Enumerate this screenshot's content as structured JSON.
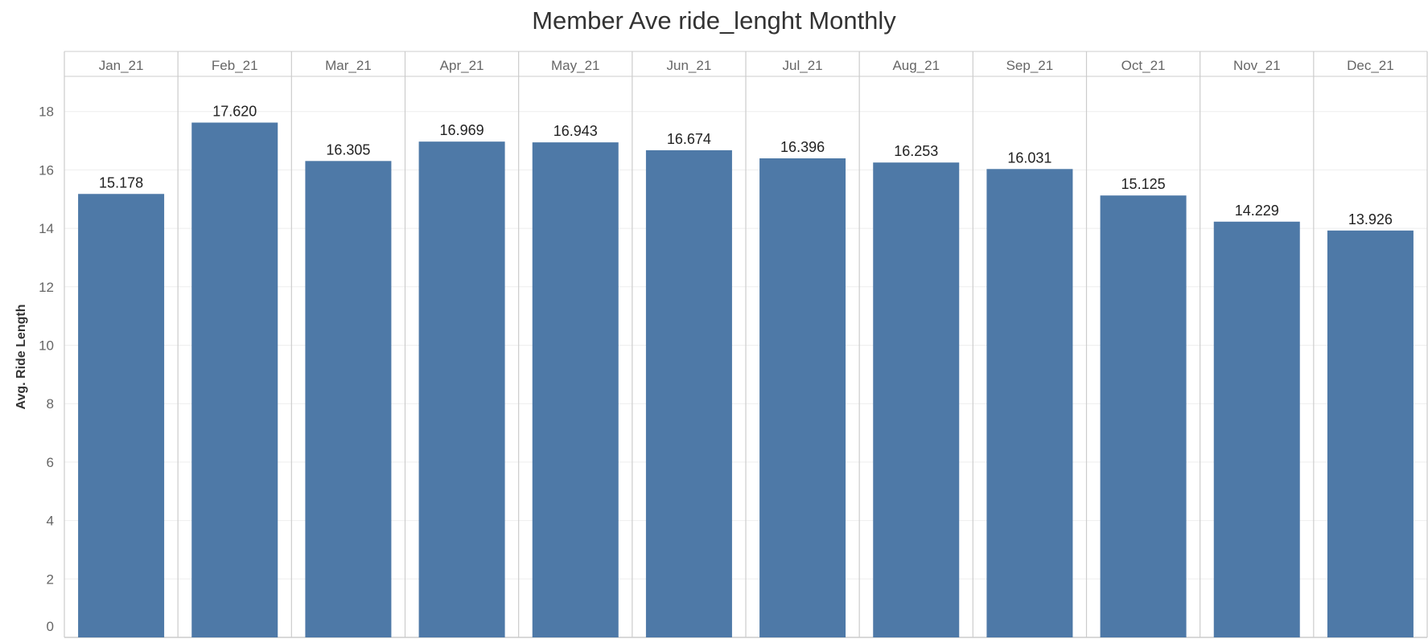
{
  "chart_data": {
    "type": "bar",
    "title": "Member Ave ride_lenght Monthly",
    "xlabel": "",
    "ylabel": "Avg. Ride Length",
    "categories": [
      "Jan_21",
      "Feb_21",
      "Mar_21",
      "Apr_21",
      "May_21",
      "Jun_21",
      "Jul_21",
      "Aug_21",
      "Sep_21",
      "Oct_21",
      "Nov_21",
      "Dec_21"
    ],
    "values": [
      15.178,
      17.62,
      16.305,
      16.969,
      16.943,
      16.674,
      16.396,
      16.253,
      16.031,
      15.125,
      14.229,
      13.926
    ],
    "data_labels": [
      "15.178",
      "17.620",
      "16.305",
      "16.969",
      "16.943",
      "16.674",
      "16.396",
      "16.253",
      "16.031",
      "15.125",
      "14.229",
      "13.926"
    ],
    "yticks": [
      0,
      2,
      4,
      6,
      8,
      10,
      12,
      14,
      16,
      18
    ],
    "ylim": [
      0,
      19
    ],
    "grid": true,
    "legend": "none",
    "colors": {
      "bar": "#4e79a7",
      "gridline": "#eeeeee",
      "divider": "#cccccc"
    }
  }
}
